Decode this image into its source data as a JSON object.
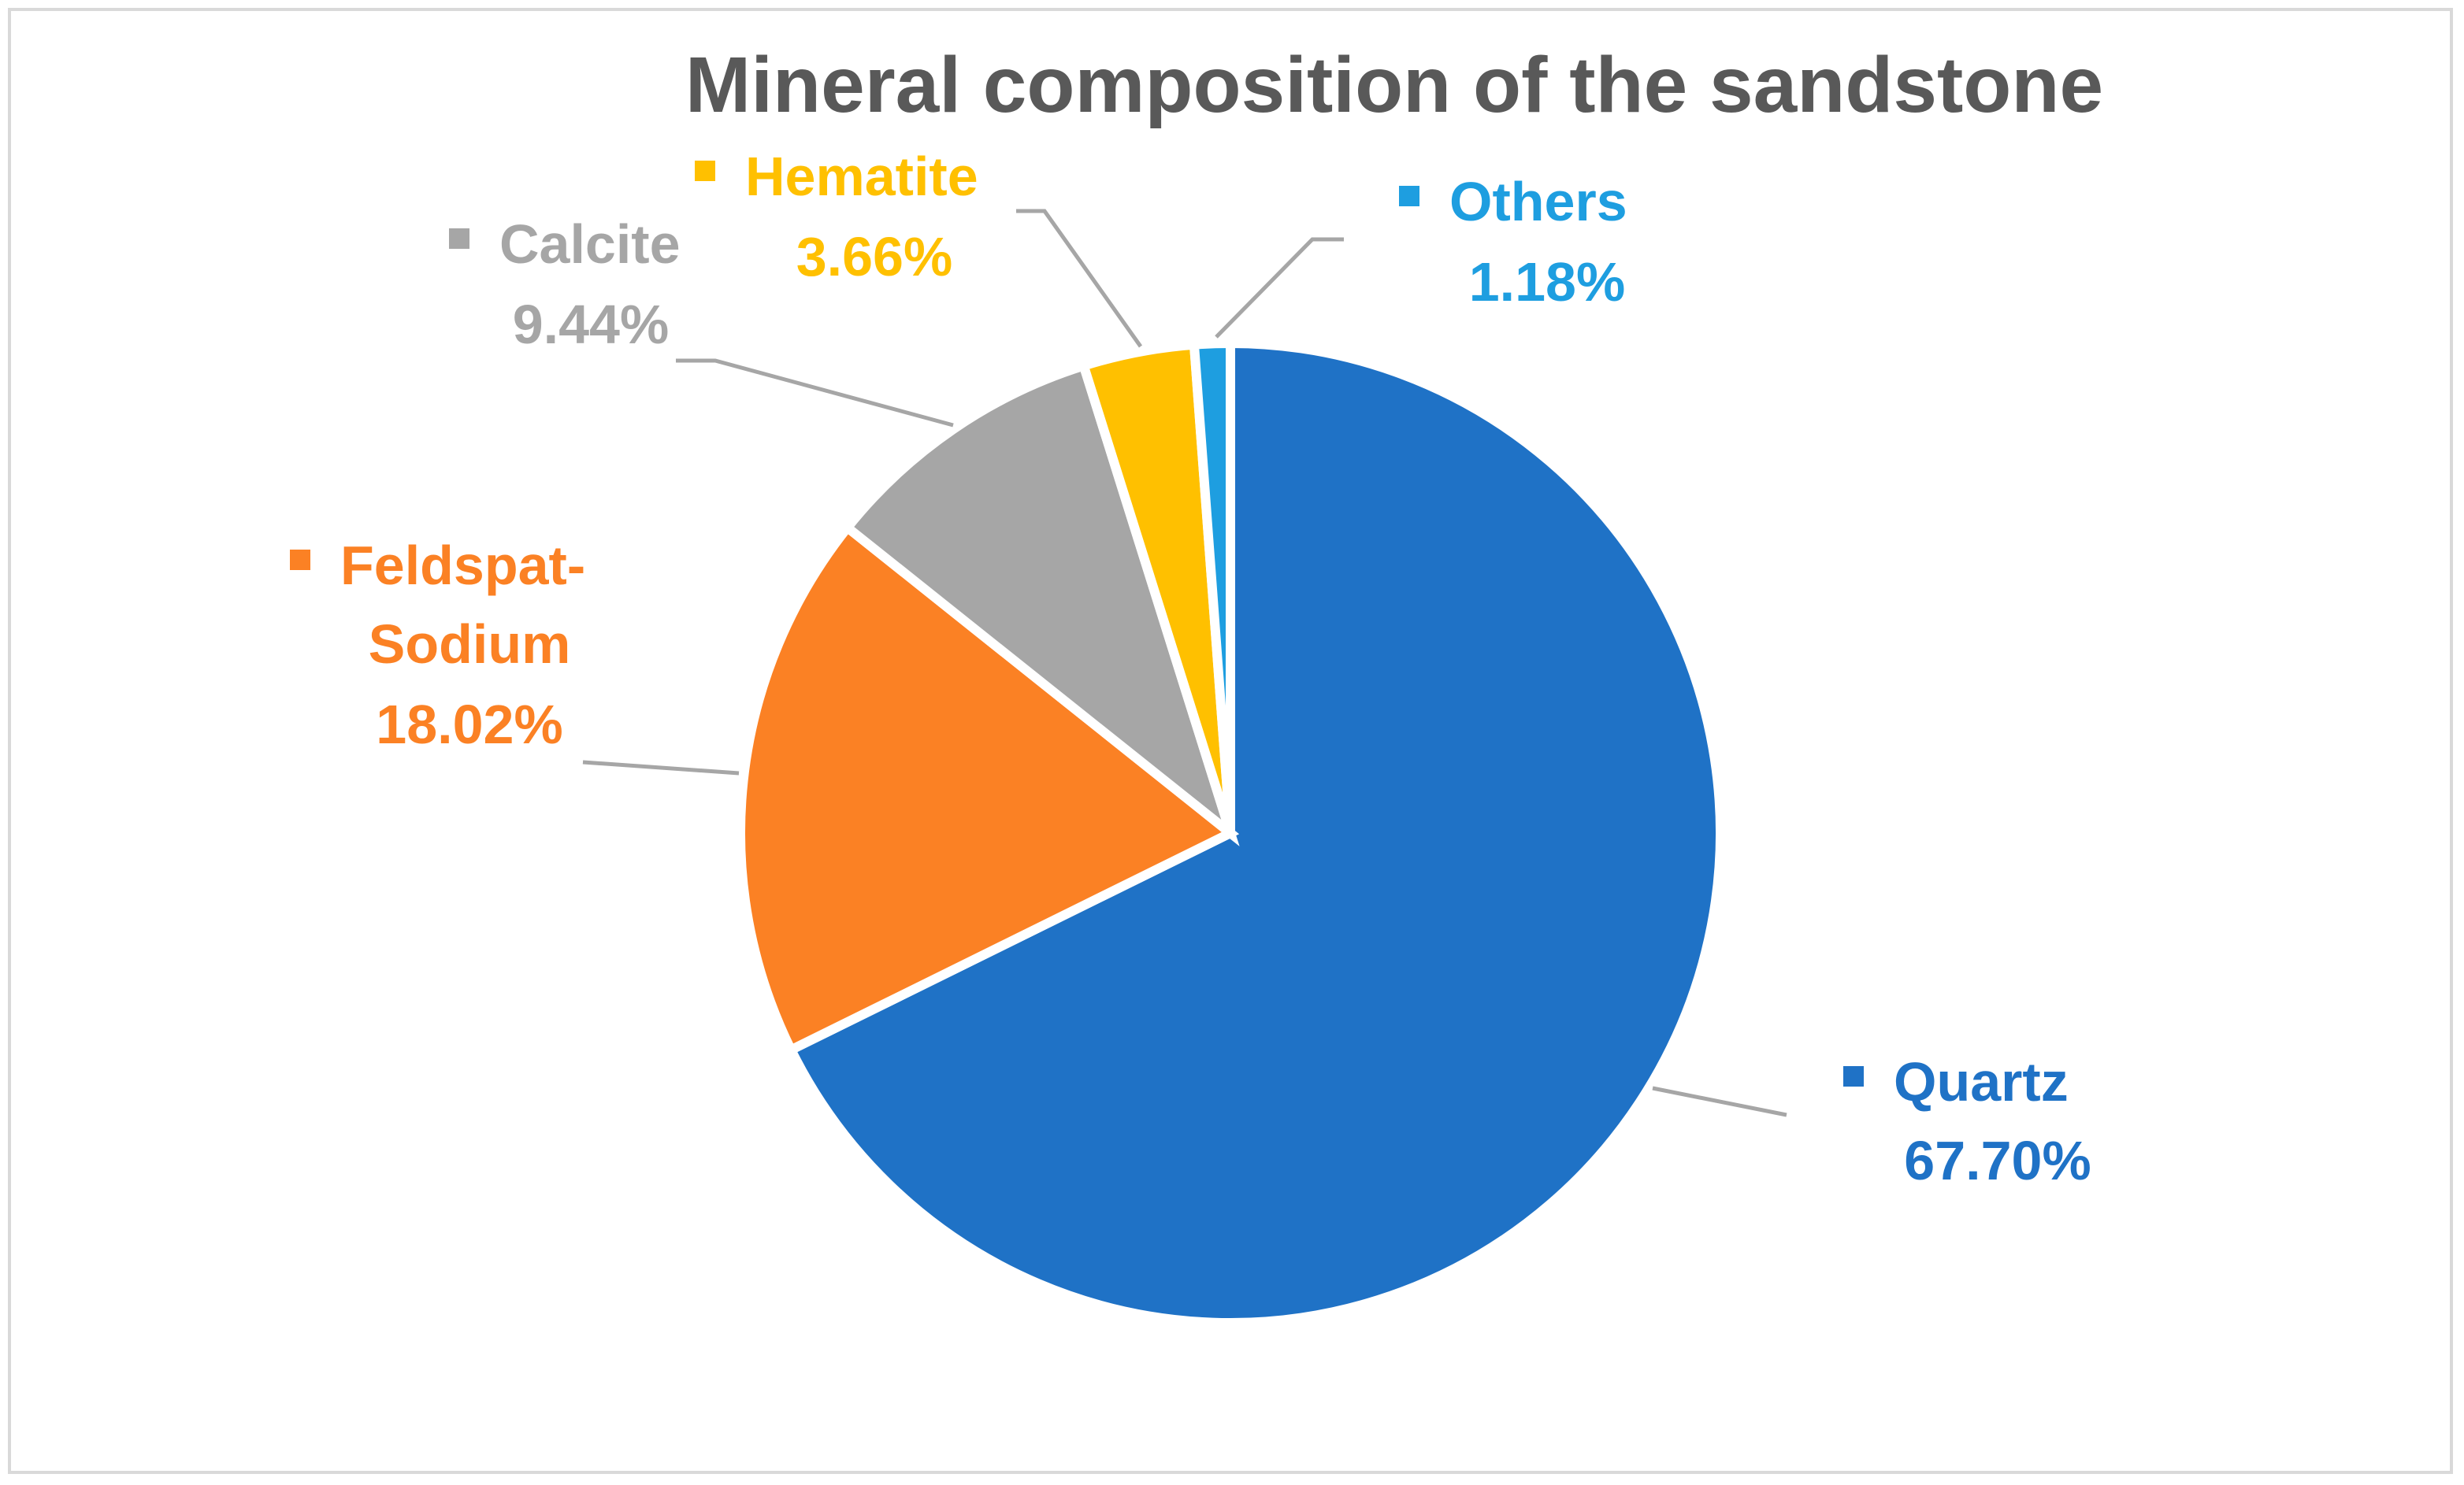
{
  "chart_data": {
    "type": "pie",
    "title": "Mineral composition of the sandstone",
    "slices": [
      {
        "label": "Quartz",
        "value": 67.7,
        "display": "67.70%",
        "color": "#1f72c6"
      },
      {
        "label": "Feldspat-Sodium",
        "label_lines": [
          "Feldspat-",
          "Sodium"
        ],
        "value": 18.02,
        "display": "18.02%",
        "color": "#fb8124"
      },
      {
        "label": "Calcite",
        "value": 9.44,
        "display": "9.44%",
        "color": "#a6a6a6"
      },
      {
        "label": "Hematite",
        "value": 3.66,
        "display": "3.66%",
        "color": "#ffc000"
      },
      {
        "label": "Others",
        "value": 1.18,
        "display": "1.18%",
        "color": "#1e9ee0"
      }
    ],
    "start_angle_deg": 0,
    "direction": "clockwise",
    "leader_line_color": "#a6a6a6",
    "title_color": "#595959"
  }
}
